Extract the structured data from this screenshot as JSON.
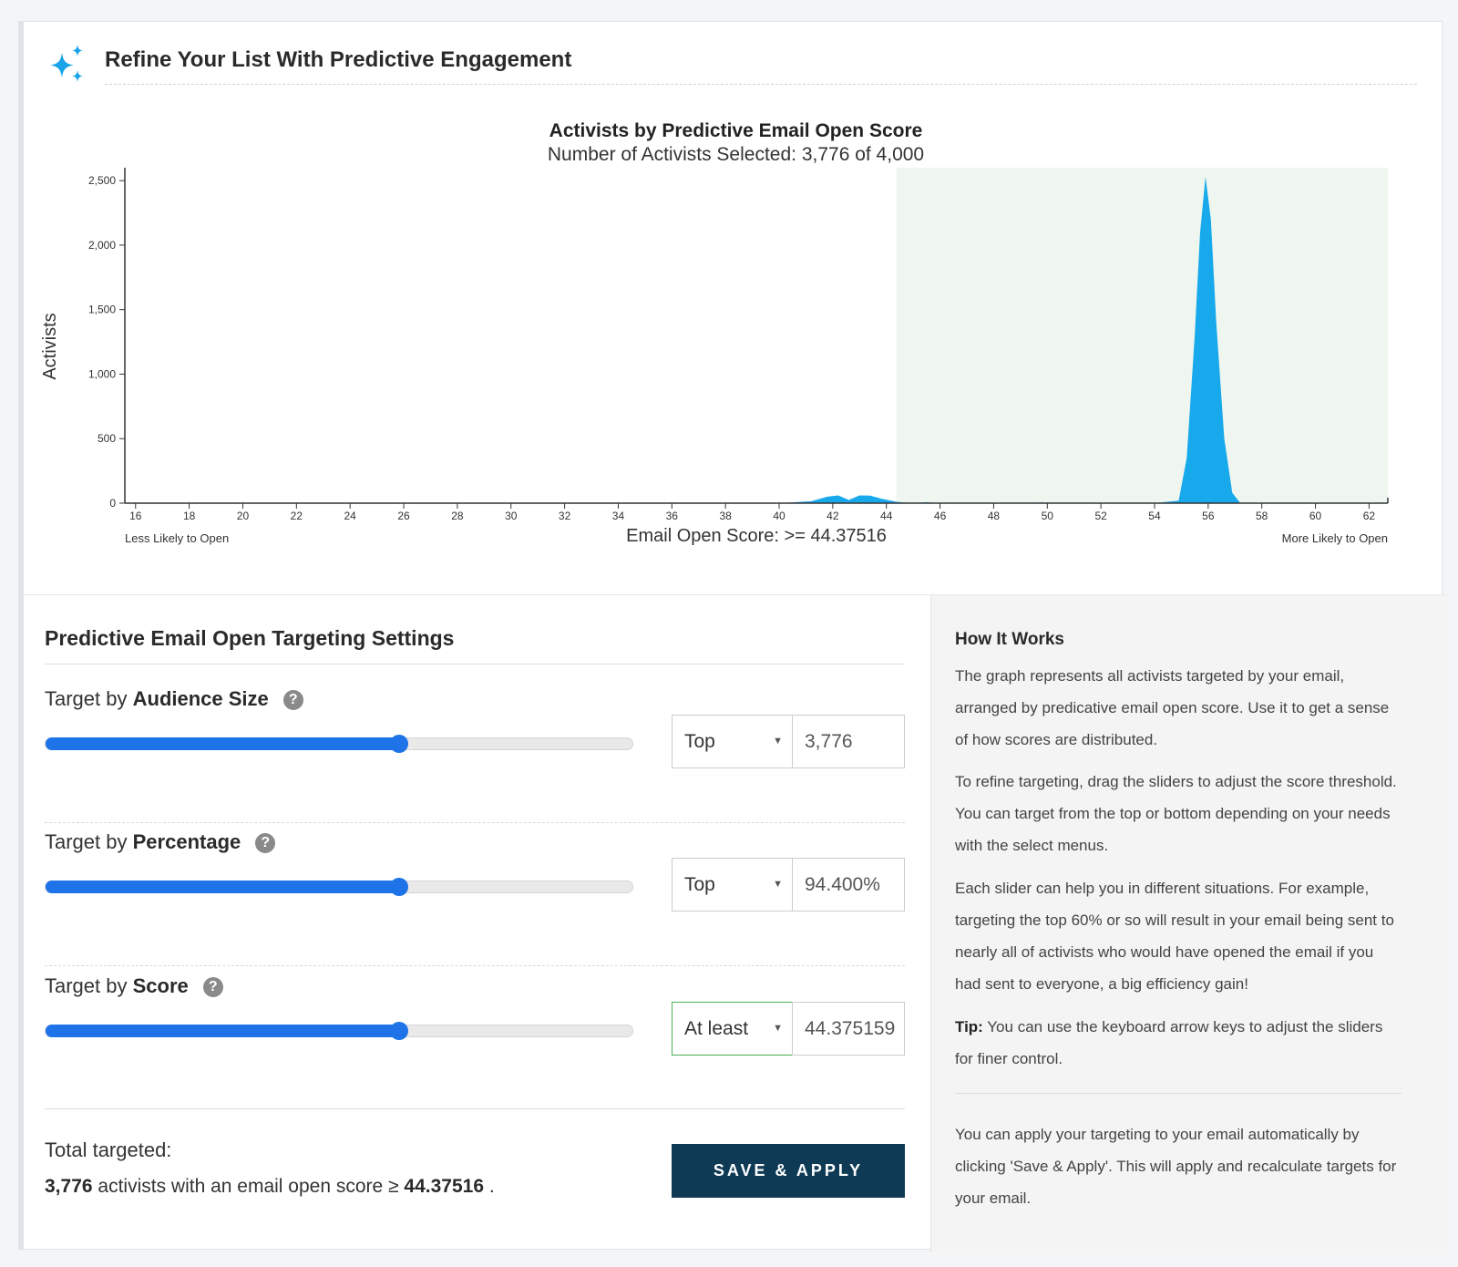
{
  "header": {
    "title": "Refine Your List With Predictive Engagement",
    "icon": "sparkle-icon",
    "icon_color": "#1aa3e8"
  },
  "chart_data": {
    "type": "area",
    "title": "Activists by Predictive Email Open Score",
    "subtitle": "Number of Activists Selected: 3,776 of 4,000",
    "ylabel": "Activists",
    "xlabel": "Email Open Score: >= 44.37516",
    "x_left_note": "Less Likely to Open",
    "x_right_note": "More Likely to Open",
    "xlim": [
      15.6,
      62.7
    ],
    "ylim": [
      0,
      2600
    ],
    "x_ticks": [
      16,
      18,
      20,
      22,
      24,
      26,
      28,
      30,
      32,
      34,
      36,
      38,
      40,
      42,
      44,
      46,
      48,
      50,
      52,
      54,
      56,
      58,
      60,
      62
    ],
    "y_ticks": [
      0,
      500,
      1000,
      1500,
      2000,
      2500
    ],
    "y_tick_labels": [
      "0",
      "500",
      "1,000",
      "1,500",
      "2,000",
      "2,500"
    ],
    "selection_min": 44.37516,
    "selection_color": "#eef6ef",
    "area_color": "#17a9ec",
    "series": [
      {
        "x": [
          15.6,
          30,
          31.5,
          32,
          32.5,
          40,
          41.2,
          41.8,
          42.2,
          42.6,
          43.0,
          43.4,
          43.8,
          44.4,
          45.0,
          45.5,
          46.0,
          48,
          49.8,
          50.2,
          54,
          54.9,
          55.2,
          55.5,
          55.7,
          55.9,
          56.1,
          56.3,
          56.6,
          56.9,
          57.2,
          62.7
        ],
        "y": [
          0,
          0,
          0,
          3,
          0,
          0,
          15,
          50,
          60,
          25,
          60,
          58,
          35,
          10,
          0,
          8,
          0,
          0,
          5,
          0,
          0,
          20,
          350,
          1300,
          2100,
          2530,
          2200,
          1400,
          500,
          80,
          0,
          0
        ]
      }
    ]
  },
  "settings": {
    "title": "Predictive Email Open Targeting Settings",
    "rows": [
      {
        "label_prefix": "Target by",
        "label_bold": "Audience Size",
        "help": "?",
        "slider_fraction": 0.603,
        "select_value": "Top",
        "input_value": "3,776"
      },
      {
        "label_prefix": "Target by",
        "label_bold": "Percentage",
        "help": "?",
        "slider_fraction": 0.603,
        "select_value": "Top",
        "input_value": "94.400%"
      },
      {
        "label_prefix": "Target by",
        "label_bold": "Score",
        "help": "?",
        "slider_fraction": 0.603,
        "select_value": "At least",
        "input_value": "44.375159"
      }
    ],
    "total_label": "Total targeted:",
    "total_count": "3,776",
    "total_mid": "activists with an email open score ≥",
    "total_score": "44.37516",
    "total_end": ".",
    "save_label": "SAVE & APPLY",
    "accent": "#1e73e8",
    "button_color": "#0e3a55"
  },
  "how": {
    "title": "How It Works",
    "p1": "The graph represents all activists targeted by your email, arranged by predicative email open score. Use it to get a sense of how scores are distributed.",
    "p2": "To refine targeting, drag the sliders to adjust the score threshold. You can target from the top or bottom depending on your needs with the select menus.",
    "p3": "Each slider can help you in different situations. For example, targeting the top 60% or so will result in your email being sent to nearly all of activists who would have opened the email if you had sent to everyone, a big efficiency gain!",
    "tip_bold": "Tip:",
    "tip_text": "You can use the keyboard arrow keys to adjust the sliders for finer control.",
    "p5": "You can apply your targeting to your email automatically by clicking 'Save & Apply'. This will apply and recalculate targets for your email."
  }
}
